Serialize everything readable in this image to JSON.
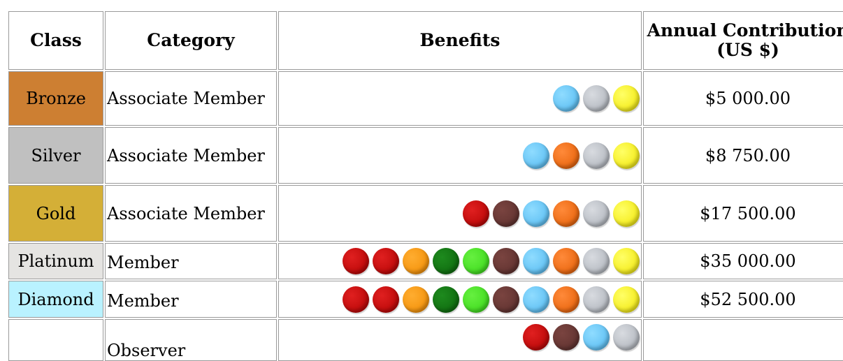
{
  "table": {
    "headers": {
      "class": "Class",
      "category": "Category",
      "benefits": "Benefits",
      "contribution": "Annual Contribution (US $)"
    },
    "rows": [
      {
        "class": "Bronze",
        "class_bg": "#CD7F32",
        "category": "Associate Member",
        "benefits": [
          "lightblue",
          "gray",
          "yellow"
        ],
        "contribution": "$5 000.00"
      },
      {
        "class": "Silver",
        "class_bg": "#C0C0C0",
        "category": "Associate Member",
        "benefits": [
          "lightblue",
          "orange",
          "gray",
          "yellow"
        ],
        "contribution": "$8 750.00"
      },
      {
        "class": "Gold",
        "class_bg": "#D4AF37",
        "category": "Associate Member",
        "benefits": [
          "red",
          "brown",
          "lightblue",
          "orange",
          "gray",
          "yellow"
        ],
        "contribution": "$17 500.00"
      },
      {
        "class": "Platinum",
        "class_bg": "#E5E4E2",
        "category": "Member",
        "benefits": [
          "red",
          "red",
          "amber",
          "darkgreen",
          "lime",
          "brown",
          "lightblue",
          "orange",
          "gray",
          "yellow"
        ],
        "contribution": "$35 000.00"
      },
      {
        "class": "Diamond",
        "class_bg": "#B9F2FF",
        "category": "Member",
        "benefits": [
          "red",
          "red",
          "amber",
          "darkgreen",
          "lime",
          "brown",
          "lightblue",
          "orange",
          "gray",
          "yellow"
        ],
        "contribution": "$52 500.00"
      },
      {
        "class": "",
        "class_bg": "#FFFFFF",
        "category": "Observer",
        "benefits": [
          "red",
          "brown",
          "lightblue",
          "gray"
        ],
        "contribution": ""
      }
    ]
  },
  "benefit_icons": {
    "lightblue": "light-blue-circle-icon",
    "gray": "gray-circle-icon",
    "yellow": "yellow-circle-icon",
    "orange": "orange-circle-icon",
    "red": "red-circle-icon",
    "brown": "brown-circle-icon",
    "amber": "amber-circle-icon",
    "darkgreen": "dark-green-circle-icon",
    "lime": "lime-green-circle-icon"
  }
}
